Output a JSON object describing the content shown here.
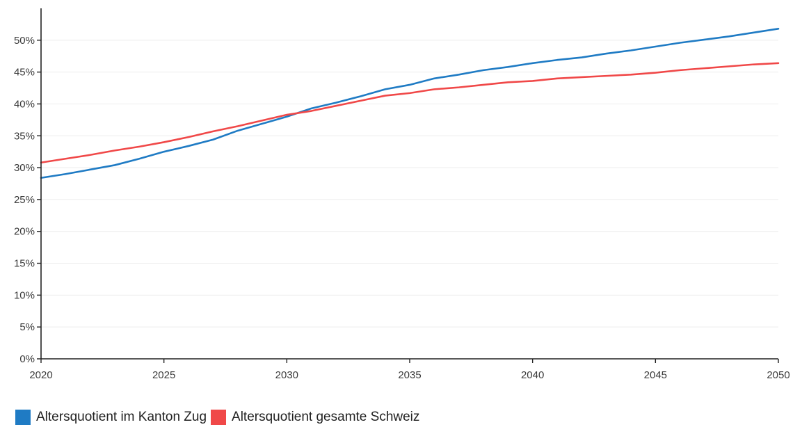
{
  "chart_data": {
    "type": "line",
    "title": "",
    "xlabel": "",
    "ylabel": "",
    "xlim": [
      2020,
      2050
    ],
    "ylim": [
      0,
      55
    ],
    "x_ticks": [
      2020,
      2025,
      2030,
      2035,
      2040,
      2045,
      2050
    ],
    "y_ticks": [
      0,
      5,
      10,
      15,
      20,
      25,
      30,
      35,
      40,
      45,
      50
    ],
    "y_tick_labels": [
      "0%",
      "5%",
      "10%",
      "15%",
      "20%",
      "25%",
      "30%",
      "35%",
      "40%",
      "45%",
      "50%"
    ],
    "grid": "horizontal",
    "legend_position": "bottom-left",
    "x": [
      2020,
      2021,
      2022,
      2023,
      2024,
      2025,
      2026,
      2027,
      2028,
      2029,
      2030,
      2031,
      2032,
      2033,
      2034,
      2035,
      2036,
      2037,
      2038,
      2039,
      2040,
      2041,
      2042,
      2043,
      2044,
      2045,
      2046,
      2047,
      2048,
      2049,
      2050
    ],
    "series": [
      {
        "name": "Altersquotient im Kanton Zug",
        "color": "#1f7bc4",
        "values": [
          28.4,
          29.0,
          29.7,
          30.4,
          31.4,
          32.5,
          33.4,
          34.4,
          35.8,
          36.9,
          38.0,
          39.3,
          40.2,
          41.2,
          42.3,
          43.0,
          44.0,
          44.6,
          45.3,
          45.8,
          46.4,
          46.9,
          47.3,
          47.9,
          48.4,
          49.0,
          49.6,
          50.1,
          50.6,
          51.2,
          51.8
        ]
      },
      {
        "name": "Altersquotient gesamte Schweiz",
        "color": "#f04848",
        "values": [
          30.8,
          31.4,
          32.0,
          32.7,
          33.3,
          34.0,
          34.8,
          35.7,
          36.5,
          37.4,
          38.3,
          38.9,
          39.7,
          40.5,
          41.3,
          41.7,
          42.3,
          42.6,
          43.0,
          43.4,
          43.6,
          44.0,
          44.2,
          44.4,
          44.6,
          44.9,
          45.3,
          45.6,
          45.9,
          46.2,
          46.4
        ]
      }
    ]
  }
}
